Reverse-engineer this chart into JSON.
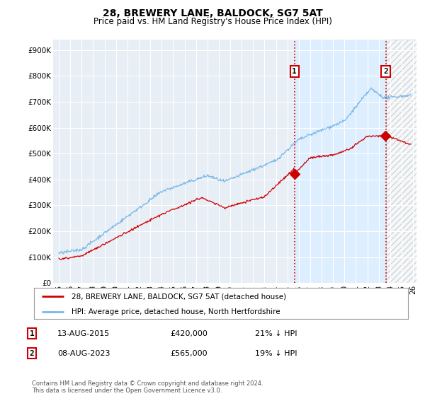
{
  "title": "28, BREWERY LANE, BALDOCK, SG7 5AT",
  "subtitle": "Price paid vs. HM Land Registry's House Price Index (HPI)",
  "ylabel_ticks": [
    "£0",
    "£100K",
    "£200K",
    "£300K",
    "£400K",
    "£500K",
    "£600K",
    "£700K",
    "£800K",
    "£900K"
  ],
  "ytick_vals": [
    0,
    100000,
    200000,
    300000,
    400000,
    500000,
    600000,
    700000,
    800000,
    900000
  ],
  "ylim": [
    0,
    940000
  ],
  "x_start_year": 1995,
  "x_end_year": 2026,
  "xtick_years": [
    1995,
    1996,
    1997,
    1998,
    1999,
    2000,
    2001,
    2002,
    2003,
    2004,
    2005,
    2006,
    2007,
    2008,
    2009,
    2010,
    2011,
    2012,
    2013,
    2014,
    2015,
    2016,
    2017,
    2018,
    2019,
    2020,
    2021,
    2022,
    2023,
    2024,
    2025,
    2026
  ],
  "hpi_color": "#7ab8e8",
  "property_color": "#cc0000",
  "sale1_year": 2015.617,
  "sale1_price": 420000,
  "sale2_year": 2023.605,
  "sale2_price": 565000,
  "vline_color": "#cc0000",
  "shade_color": "#ddeeff",
  "hatch_color": "#cccccc",
  "legend_property": "28, BREWERY LANE, BALDOCK, SG7 5AT (detached house)",
  "legend_hpi": "HPI: Average price, detached house, North Hertfordshire",
  "table_row1": [
    "1",
    "13-AUG-2015",
    "£420,000",
    "21% ↓ HPI"
  ],
  "table_row2": [
    "2",
    "08-AUG-2023",
    "£565,000",
    "19% ↓ HPI"
  ],
  "footer": "Contains HM Land Registry data © Crown copyright and database right 2024.\nThis data is licensed under the Open Government Licence v3.0.",
  "background_color": "#ffffff",
  "plot_background": "#e8eef5"
}
